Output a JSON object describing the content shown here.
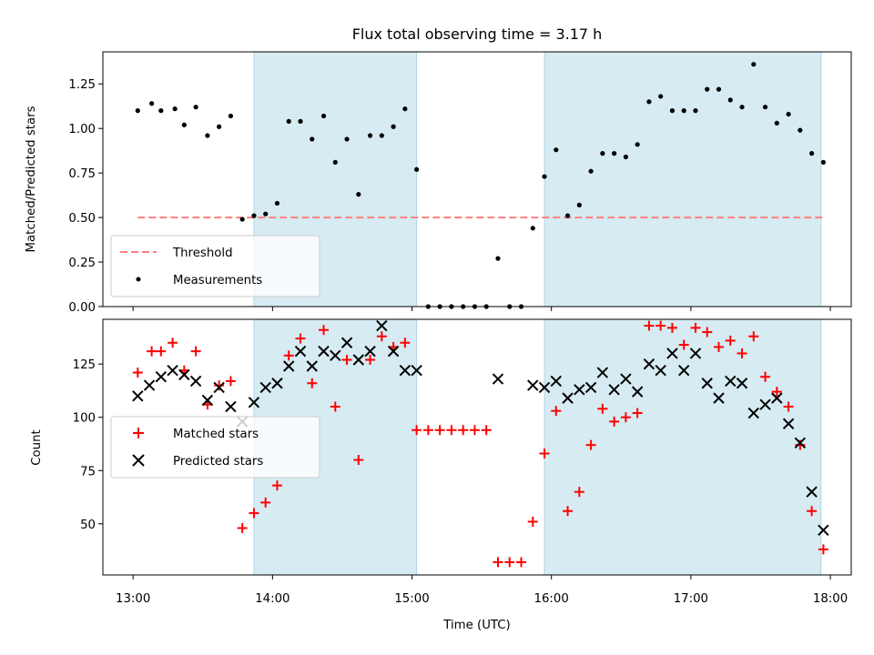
{
  "chart_data": {
    "title": "Flux total observing time = 3.17 h",
    "xlabel": "Time (UTC)",
    "x_ticks": [
      "13:00",
      "14:00",
      "15:00",
      "16:00",
      "17:00",
      "18:00"
    ],
    "xlim": [
      "12:47",
      "18:09"
    ],
    "shaded_intervals": [
      {
        "start": "13:52",
        "end": "15:02"
      },
      {
        "start": "15:57",
        "end": "17:56"
      }
    ],
    "colors": {
      "shade": "#add8e6",
      "threshold": "#ff7f7f",
      "measurements": "#000000",
      "matched": "#ff0000",
      "predicted": "#000000"
    },
    "panels": [
      {
        "id": "top",
        "type": "scatter",
        "ylabel": "Matched/Predicted stars",
        "ylim": [
          0,
          1.43
        ],
        "y_ticks": [
          "0.00",
          "0.25",
          "0.50",
          "0.75",
          "1.00",
          "1.25"
        ],
        "legend": {
          "position": "lower-left",
          "entries": [
            "Threshold",
            "Measurements"
          ]
        },
        "threshold": {
          "name": "Threshold",
          "value": 0.5,
          "x_start": "13:02",
          "x_end": "17:58"
        },
        "series": [
          {
            "name": "Measurements",
            "points": [
              [
                "13:02",
                1.1
              ],
              [
                "13:08",
                1.14
              ],
              [
                "13:12",
                1.1
              ],
              [
                "13:18",
                1.11
              ],
              [
                "13:22",
                1.02
              ],
              [
                "13:27",
                1.12
              ],
              [
                "13:32",
                0.96
              ],
              [
                "13:37",
                1.01
              ],
              [
                "13:42",
                1.07
              ],
              [
                "13:47",
                0.49
              ],
              [
                "13:52",
                0.51
              ],
              [
                "13:57",
                0.52
              ],
              [
                "14:02",
                0.58
              ],
              [
                "14:07",
                1.04
              ],
              [
                "14:12",
                1.04
              ],
              [
                "14:17",
                0.94
              ],
              [
                "14:22",
                1.07
              ],
              [
                "14:27",
                0.81
              ],
              [
                "14:32",
                0.94
              ],
              [
                "14:37",
                0.63
              ],
              [
                "14:42",
                0.96
              ],
              [
                "14:47",
                0.96
              ],
              [
                "14:52",
                1.01
              ],
              [
                "14:57",
                1.11
              ],
              [
                "15:02",
                0.77
              ],
              [
                "15:07",
                0.0
              ],
              [
                "15:12",
                0.0
              ],
              [
                "15:17",
                0.0
              ],
              [
                "15:22",
                0.0
              ],
              [
                "15:27",
                0.0
              ],
              [
                "15:32",
                0.0
              ],
              [
                "15:37",
                0.27
              ],
              [
                "15:42",
                0.0
              ],
              [
                "15:47",
                0.0
              ],
              [
                "15:52",
                0.44
              ],
              [
                "15:57",
                0.73
              ],
              [
                "16:02",
                0.88
              ],
              [
                "16:07",
                0.51
              ],
              [
                "16:12",
                0.57
              ],
              [
                "16:17",
                0.76
              ],
              [
                "16:22",
                0.86
              ],
              [
                "16:27",
                0.86
              ],
              [
                "16:32",
                0.84
              ],
              [
                "16:37",
                0.91
              ],
              [
                "16:42",
                1.15
              ],
              [
                "16:47",
                1.18
              ],
              [
                "16:52",
                1.1
              ],
              [
                "16:57",
                1.1
              ],
              [
                "17:02",
                1.1
              ],
              [
                "17:07",
                1.22
              ],
              [
                "17:12",
                1.22
              ],
              [
                "17:17",
                1.16
              ],
              [
                "17:22",
                1.12
              ],
              [
                "17:27",
                1.36
              ],
              [
                "17:32",
                1.12
              ],
              [
                "17:37",
                1.03
              ],
              [
                "17:42",
                1.08
              ],
              [
                "17:47",
                0.99
              ],
              [
                "17:52",
                0.86
              ],
              [
                "17:57",
                0.81
              ]
            ]
          }
        ]
      },
      {
        "id": "bottom",
        "type": "scatter",
        "ylabel": "Count",
        "ylim": [
          26,
          146
        ],
        "y_ticks": [
          "50",
          "75",
          "100",
          "125"
        ],
        "legend": {
          "position": "center-left",
          "entries": [
            "Matched stars",
            "Predicted stars"
          ]
        },
        "series": [
          {
            "name": "Matched stars",
            "marker": "plus",
            "points": [
              [
                "13:02",
                121
              ],
              [
                "13:08",
                131
              ],
              [
                "13:12",
                131
              ],
              [
                "13:17",
                135
              ],
              [
                "13:22",
                122
              ],
              [
                "13:27",
                131
              ],
              [
                "13:32",
                106
              ],
              [
                "13:37",
                115
              ],
              [
                "13:42",
                117
              ],
              [
                "13:47",
                48
              ],
              [
                "13:52",
                55
              ],
              [
                "13:57",
                60
              ],
              [
                "14:02",
                68
              ],
              [
                "14:07",
                129
              ],
              [
                "14:12",
                137
              ],
              [
                "14:17",
                116
              ],
              [
                "14:22",
                141
              ],
              [
                "14:27",
                105
              ],
              [
                "14:32",
                127
              ],
              [
                "14:37",
                80
              ],
              [
                "14:42",
                127
              ],
              [
                "14:47",
                138
              ],
              [
                "14:52",
                133
              ],
              [
                "14:57",
                135
              ],
              [
                "15:02",
                94
              ],
              [
                "15:07",
                94
              ],
              [
                "15:12",
                94
              ],
              [
                "15:17",
                94
              ],
              [
                "15:22",
                94
              ],
              [
                "15:27",
                94
              ],
              [
                "15:32",
                94
              ],
              [
                "15:37",
                32
              ],
              [
                "15:42",
                32
              ],
              [
                "15:47",
                32
              ],
              [
                "15:52",
                51
              ],
              [
                "15:57",
                83
              ],
              [
                "16:02",
                103
              ],
              [
                "16:07",
                56
              ],
              [
                "16:12",
                65
              ],
              [
                "16:17",
                87
              ],
              [
                "16:22",
                104
              ],
              [
                "16:27",
                98
              ],
              [
                "16:32",
                100
              ],
              [
                "16:37",
                102
              ],
              [
                "16:42",
                143
              ],
              [
                "16:47",
                143
              ],
              [
                "16:52",
                142
              ],
              [
                "16:57",
                134
              ],
              [
                "17:02",
                142
              ],
              [
                "17:07",
                140
              ],
              [
                "17:12",
                133
              ],
              [
                "17:17",
                136
              ],
              [
                "17:22",
                130
              ],
              [
                "17:27",
                138
              ],
              [
                "17:32",
                119
              ],
              [
                "17:37",
                112
              ],
              [
                "17:42",
                105
              ],
              [
                "17:47",
                87
              ],
              [
                "17:52",
                56
              ],
              [
                "17:57",
                38
              ]
            ]
          },
          {
            "name": "Predicted stars",
            "marker": "x",
            "points": [
              [
                "13:02",
                110
              ],
              [
                "13:07",
                115
              ],
              [
                "13:12",
                119
              ],
              [
                "13:17",
                122
              ],
              [
                "13:22",
                120
              ],
              [
                "13:27",
                117
              ],
              [
                "13:32",
                108
              ],
              [
                "13:37",
                114
              ],
              [
                "13:42",
                105
              ],
              [
                "13:47",
                98
              ],
              [
                "13:52",
                107
              ],
              [
                "13:57",
                114
              ],
              [
                "14:02",
                116
              ],
              [
                "14:07",
                124
              ],
              [
                "14:12",
                131
              ],
              [
                "14:17",
                124
              ],
              [
                "14:22",
                131
              ],
              [
                "14:27",
                129
              ],
              [
                "14:32",
                135
              ],
              [
                "14:37",
                127
              ],
              [
                "14:42",
                131
              ],
              [
                "14:47",
                143
              ],
              [
                "14:52",
                131
              ],
              [
                "14:57",
                122
              ],
              [
                "15:02",
                122
              ],
              [
                "15:37",
                118
              ],
              [
                "15:52",
                115
              ],
              [
                "15:57",
                114
              ],
              [
                "16:02",
                117
              ],
              [
                "16:07",
                109
              ],
              [
                "16:12",
                113
              ],
              [
                "16:17",
                114
              ],
              [
                "16:22",
                121
              ],
              [
                "16:27",
                113
              ],
              [
                "16:32",
                118
              ],
              [
                "16:37",
                112
              ],
              [
                "16:42",
                125
              ],
              [
                "16:47",
                122
              ],
              [
                "16:52",
                130
              ],
              [
                "16:57",
                122
              ],
              [
                "17:02",
                130
              ],
              [
                "17:07",
                116
              ],
              [
                "17:12",
                109
              ],
              [
                "17:17",
                117
              ],
              [
                "17:22",
                116
              ],
              [
                "17:27",
                102
              ],
              [
                "17:32",
                106
              ],
              [
                "17:37",
                109
              ],
              [
                "17:42",
                97
              ],
              [
                "17:47",
                88
              ],
              [
                "17:52",
                65
              ],
              [
                "17:57",
                47
              ]
            ]
          }
        ]
      }
    ]
  }
}
